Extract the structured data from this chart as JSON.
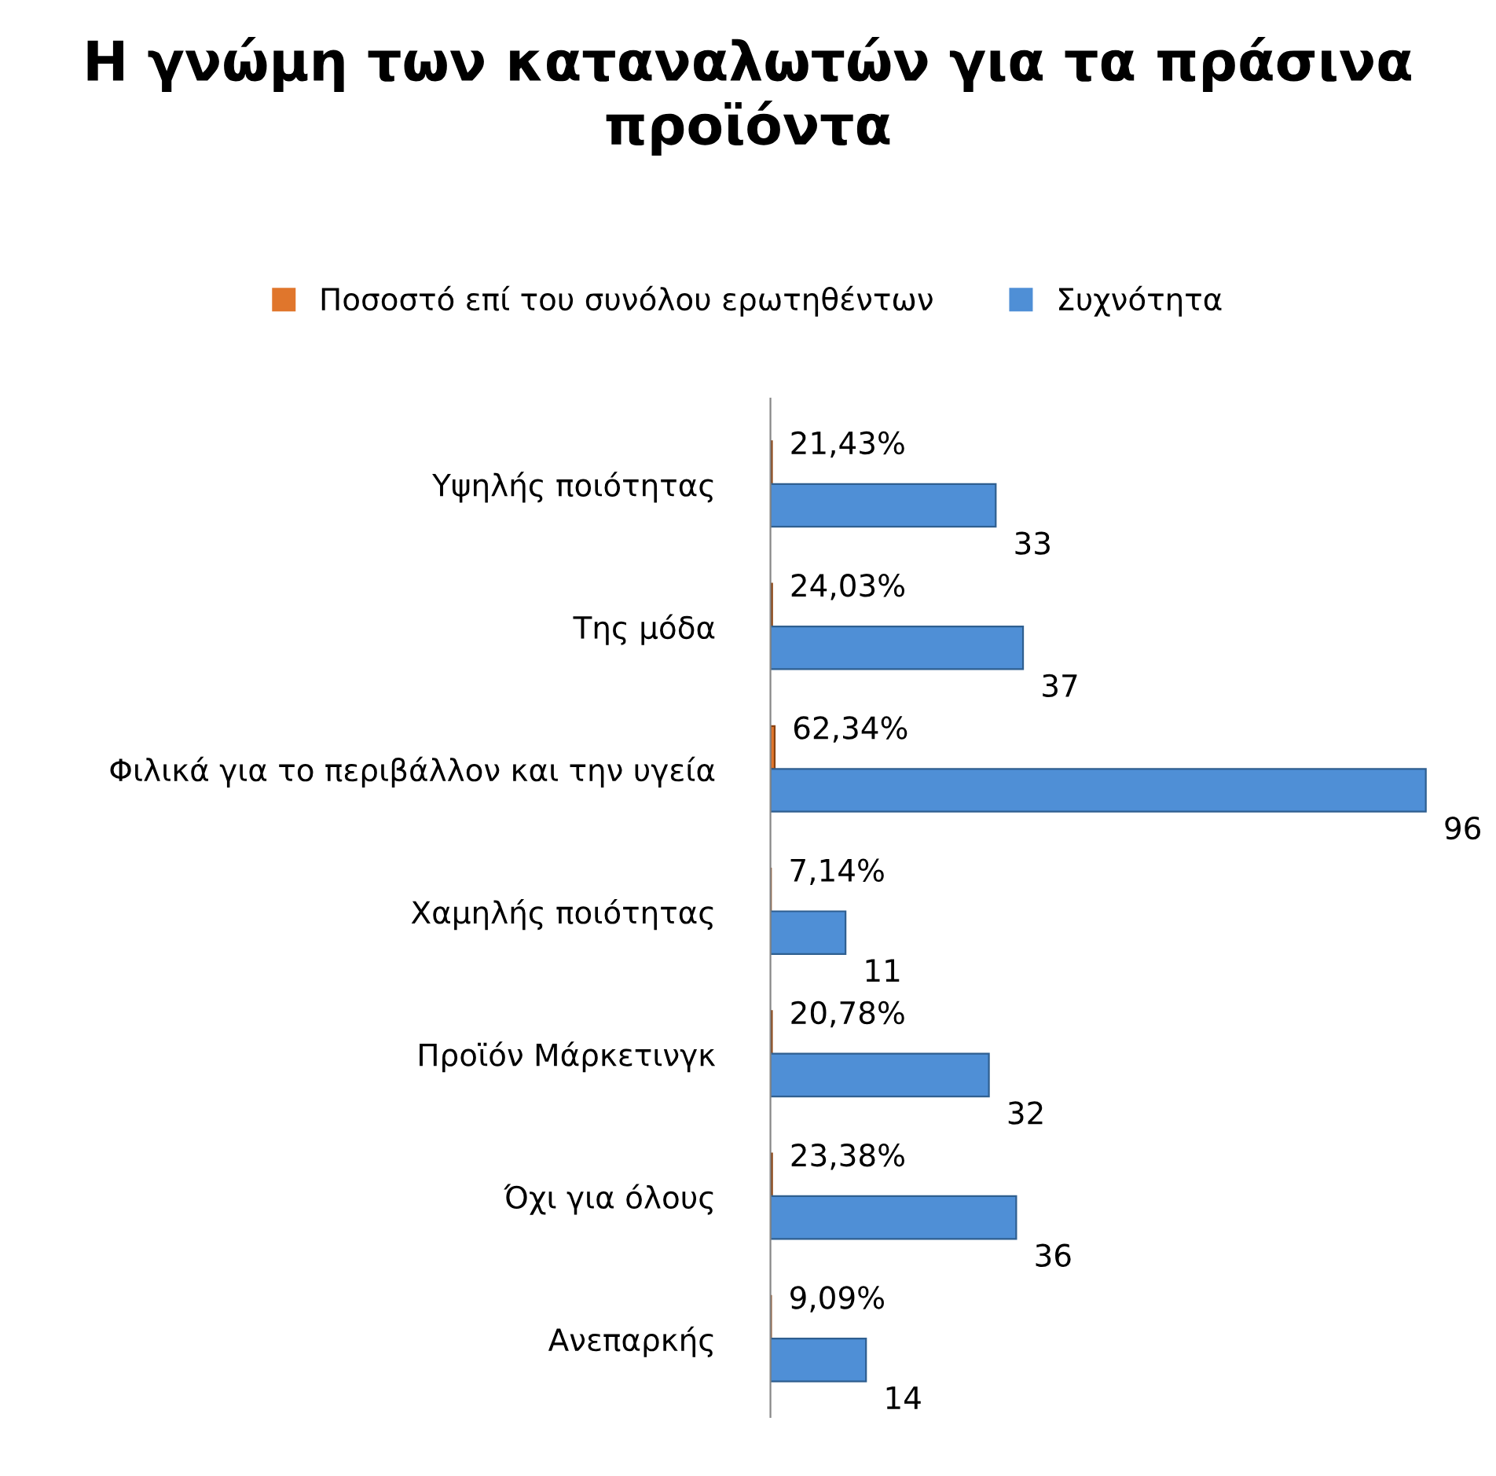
{
  "chart_data": {
    "type": "bar",
    "orientation": "horizontal",
    "title": "Η γνώμη των καταναλωτών για τα πράσινα προϊόντα",
    "categories": [
      "Υψηλής ποιότητας",
      "Της μόδα",
      "Φιλικά για το περιβάλλον και την υγεία",
      "Χαμηλής ποιότητας",
      "Προϊόν Μάρκετινγκ",
      "Όχι για όλους",
      "Ανεπαρκής"
    ],
    "series": [
      {
        "name": "Ποσοστό επί του συνόλου ερωτηθέντων",
        "color": "#e0762c",
        "values": [
          0.2143,
          0.2403,
          0.6234,
          0.0714,
          0.2078,
          0.2338,
          0.0909
        ],
        "value_labels": [
          "21,43%",
          "24,03%",
          "62,34%",
          "7,14%",
          "20,78%",
          "23,38%",
          "9,09%"
        ]
      },
      {
        "name": "Συχνότητα",
        "color": "#4f8fd6",
        "values": [
          33,
          37,
          96,
          11,
          32,
          36,
          14
        ],
        "value_labels": [
          "33",
          "37",
          "96",
          "11",
          "32",
          "36",
          "14"
        ]
      }
    ],
    "legend": "top",
    "grid": false
  }
}
